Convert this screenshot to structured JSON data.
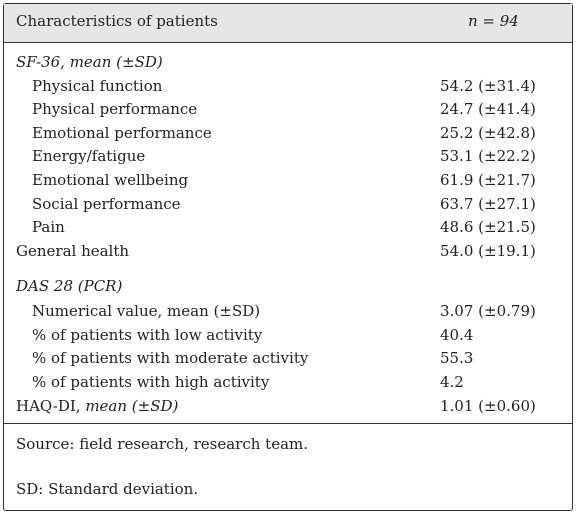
{
  "header": {
    "col1": "Characteristics of patients",
    "col2": "n = 94"
  },
  "sections": [
    {
      "heading": "SF-36, mean (±SD)",
      "rows": [
        {
          "label": "Physical function",
          "value": "54.2 (±31.4)"
        },
        {
          "label": "Physical performance",
          "value": "24.7 (±41.4)"
        },
        {
          "label": "Emotional performance",
          "value": "25.2 (±42.8)"
        },
        {
          "label": "Energy/fatigue",
          "value": "53.1 (±22.2)"
        },
        {
          "label": "Emotional wellbeing",
          "value": "61.9 (±21.7)"
        },
        {
          "label": "Social performance",
          "value": "63.7 (±27.1)"
        },
        {
          "label": "Pain",
          "value": "48.6 (±21.5)"
        },
        {
          "label": "General health",
          "value": "54.0 (±19.1)"
        }
      ]
    },
    {
      "heading": "DAS 28 (PCR)",
      "rows": [
        {
          "label": "Numerical value, mean (±SD)",
          "value": "3.07 (±0.79)"
        },
        {
          "label": "% of patients with low activity",
          "value": "40.4"
        },
        {
          "label": "% of patients with moderate activity",
          "value": "55.3"
        },
        {
          "label": "% of patients with high activity",
          "value": "4.2"
        }
      ],
      "trailing": {
        "label_prefix": "HAQ-DI, ",
        "label_italic": "mean (±SD)",
        "value": "1.01 (±0.60)"
      }
    }
  ],
  "footnotes": [
    "Source: field research, research team.",
    "SD: Standard deviation."
  ]
}
